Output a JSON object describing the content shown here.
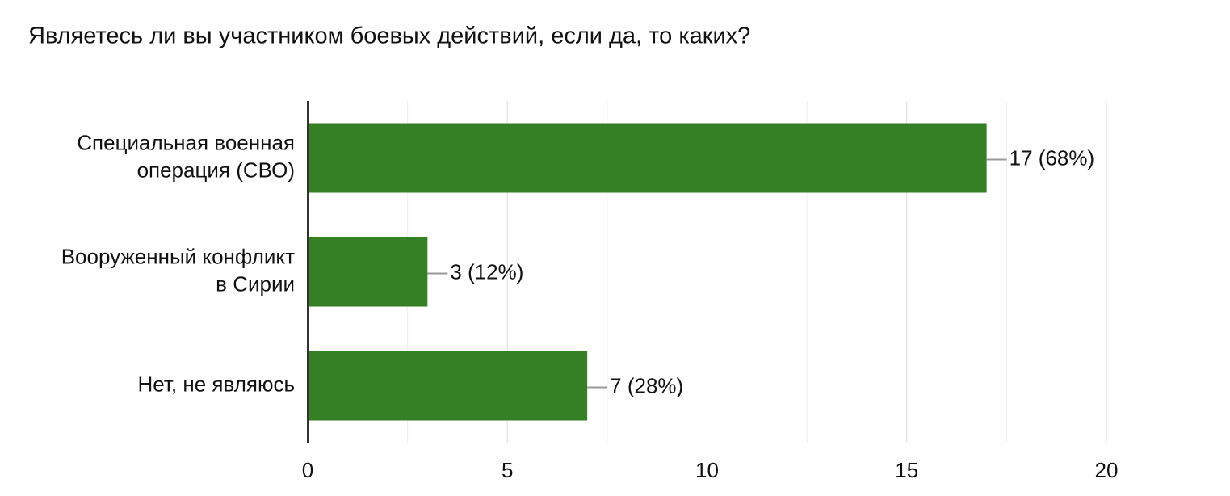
{
  "chart_data": {
    "type": "bar",
    "orientation": "horizontal",
    "title": "Являетесь ли вы участником боевых действий, если да, то каких?",
    "categories": [
      "Специальная военная\nоперация (СВО)",
      "Вооруженный конфликт\nв Сирии",
      "Нет, не являюсь"
    ],
    "values": [
      17,
      3,
      7
    ],
    "value_labels": [
      "17 (68%)",
      "3 (12%)",
      "7 (28%)"
    ],
    "color": "#358024",
    "xlim": [
      0,
      20
    ],
    "xticks": [
      0,
      5,
      10,
      15,
      20
    ],
    "grid": true
  }
}
